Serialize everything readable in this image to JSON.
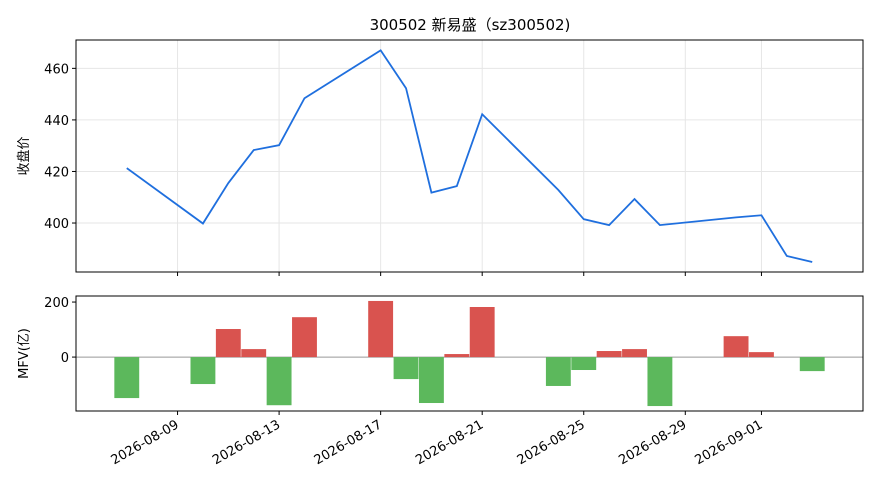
{
  "chart_data": [
    {
      "type": "line",
      "title": "300502 新易盛（sz300502)",
      "y_label": "收盘价",
      "x": [
        "2026-08-07",
        "2026-08-10",
        "2026-08-11",
        "2026-08-12",
        "2026-08-13",
        "2026-08-14",
        "2026-08-17",
        "2026-08-18",
        "2026-08-19",
        "2026-08-20",
        "2026-08-21",
        "2026-08-24",
        "2026-08-25",
        "2026-08-26",
        "2026-08-27",
        "2026-08-28",
        "2026-08-31",
        "2026-09-01",
        "2026-09-02",
        "2026-09-03"
      ],
      "series": [
        {
          "name": "收盘价",
          "color": "#1f6fde",
          "values": [
            421.3,
            399.8,
            415.5,
            428.3,
            430.2,
            448.4,
            467,
            452.3,
            411.8,
            414.3,
            442.2,
            412.8,
            401.5,
            399.2,
            409.3,
            399.2,
            402.2,
            403,
            387.2,
            384.9
          ]
        }
      ],
      "xlim": [
        "2026-08-05",
        "2026-09-05"
      ],
      "ylim": [
        381,
        471
      ],
      "yticks": [
        400,
        420,
        440,
        460
      ],
      "grid": true
    },
    {
      "type": "bar",
      "y_label": "MFV(亿)",
      "x": [
        "2026-08-07",
        "2026-08-10",
        "2026-08-11",
        "2026-08-12",
        "2026-08-13",
        "2026-08-14",
        "2026-08-17",
        "2026-08-18",
        "2026-08-19",
        "2026-08-20",
        "2026-08-21",
        "2026-08-24",
        "2026-08-25",
        "2026-08-26",
        "2026-08-27",
        "2026-08-28",
        "2026-08-31",
        "2026-09-01",
        "2026-09-02",
        "2026-09-03"
      ],
      "values": [
        -149,
        -98,
        102,
        29,
        -175,
        145,
        204,
        -80,
        -167,
        11,
        182,
        -105,
        -47,
        22,
        29,
        -178,
        76,
        18,
        0,
        -51
      ],
      "positive_color": "#d9534f",
      "negative_color": "#5cb85c",
      "xlim": [
        "2026-08-05",
        "2026-09-05"
      ],
      "xticks": [
        "2026-08-09",
        "2026-08-13",
        "2026-08-17",
        "2026-08-21",
        "2026-08-25",
        "2026-08-29",
        "2026-09-01"
      ],
      "ylim": [
        -196,
        222
      ],
      "yticks": [
        0,
        200
      ],
      "grid": false
    }
  ]
}
